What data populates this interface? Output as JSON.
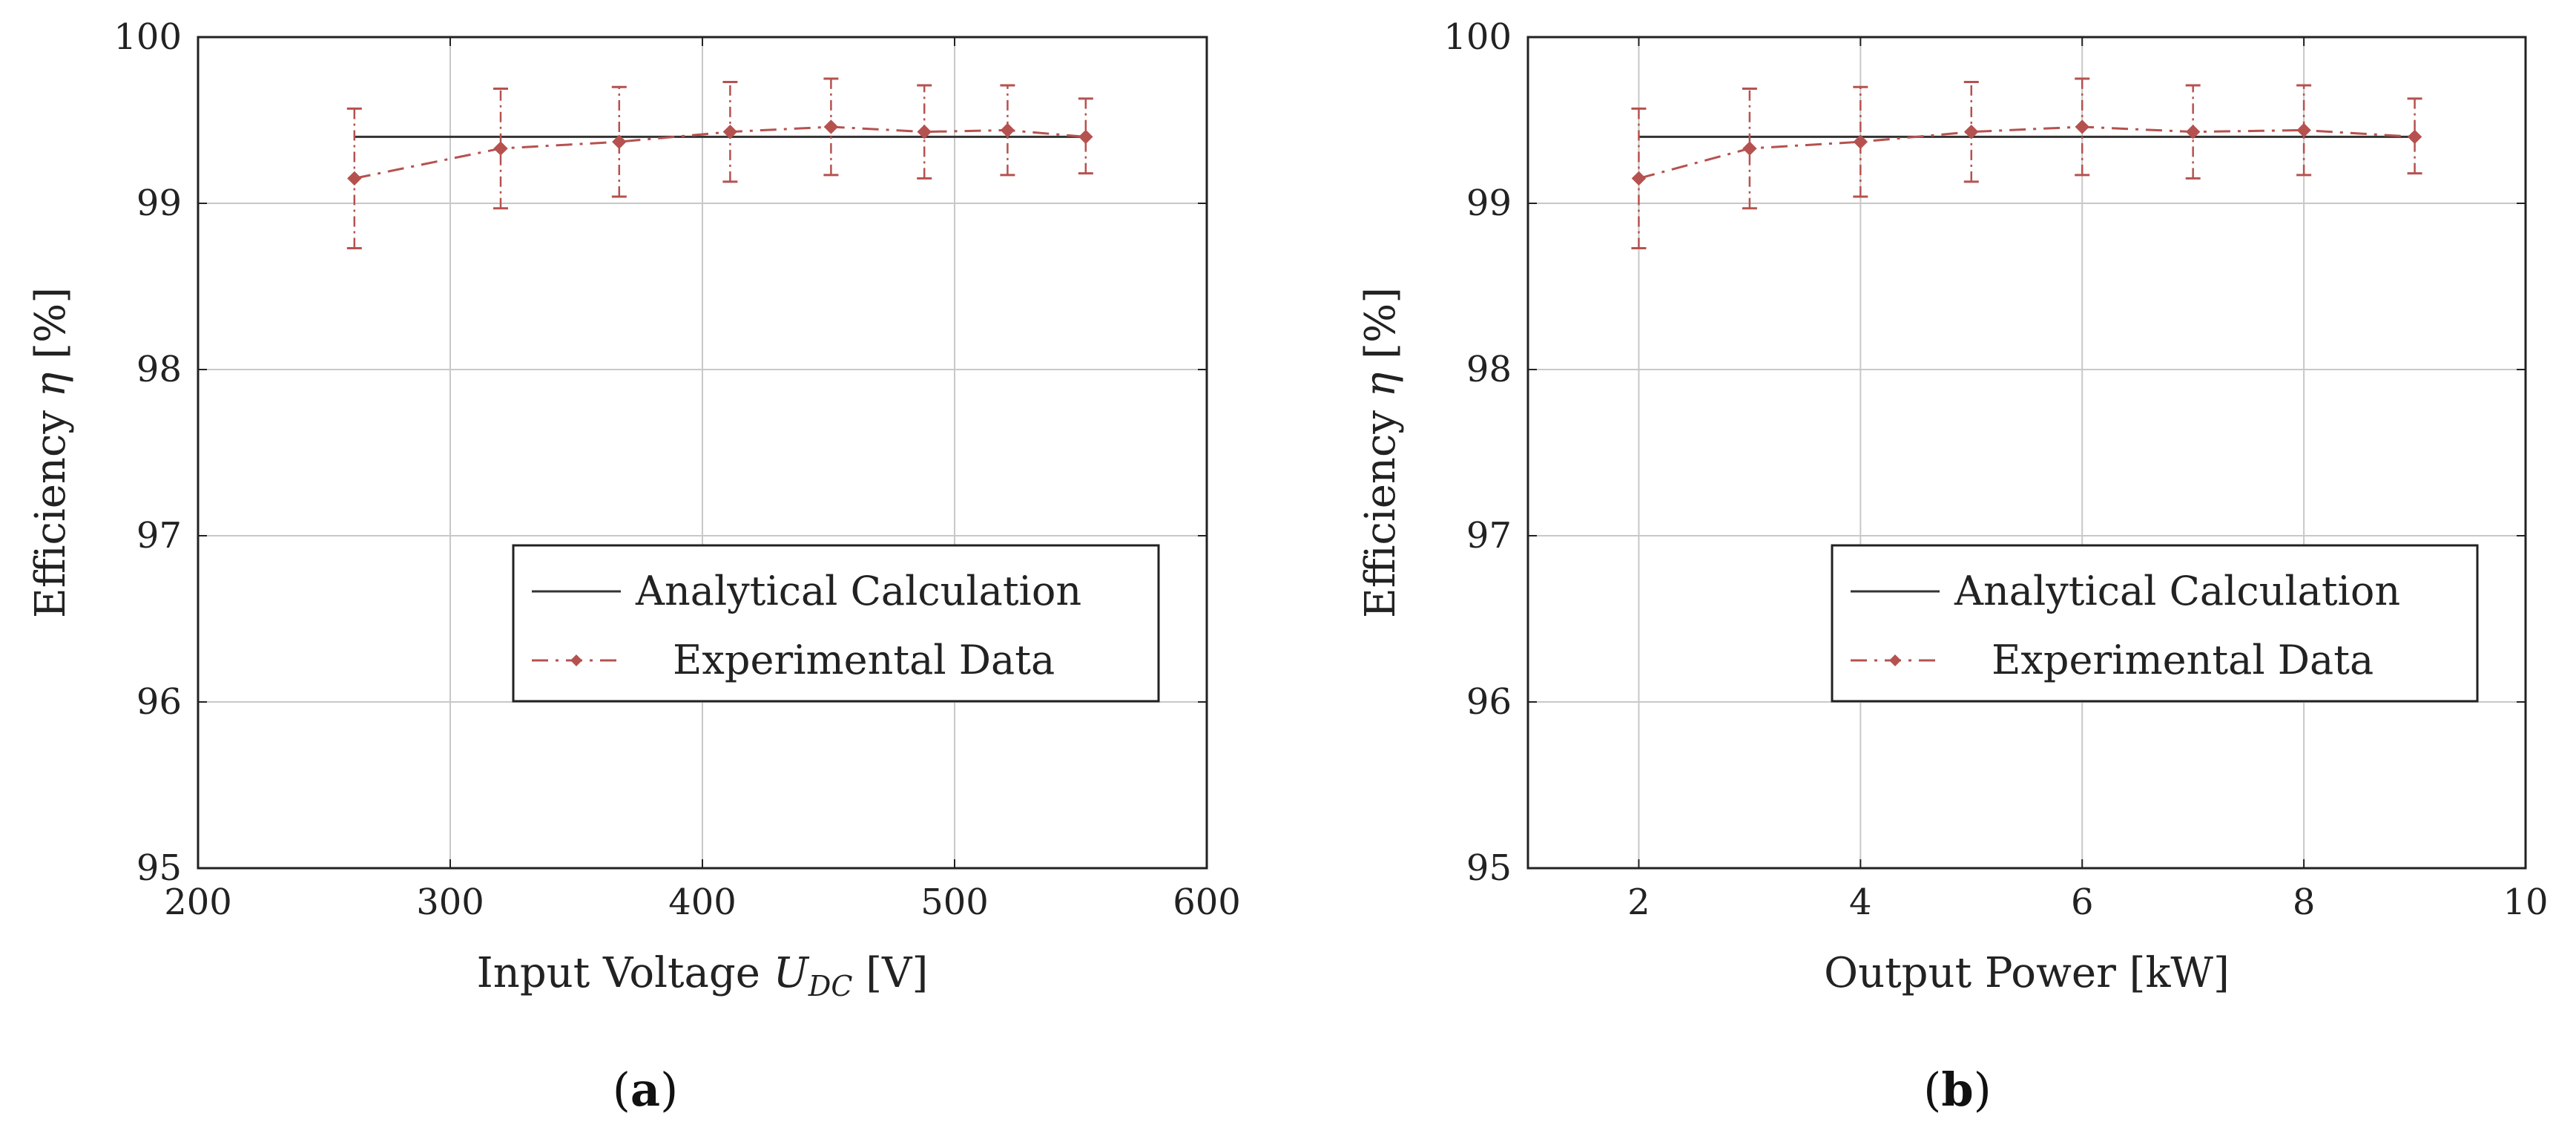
{
  "chart_data": [
    {
      "type": "line",
      "panel_label": "a",
      "xlabel_main": "Input Voltage ",
      "xlabel_symbol": "U",
      "xlabel_subscript": "DC",
      "xlabel_unit": " [V]",
      "ylabel_main": "Efficiency ",
      "ylabel_symbol": "η",
      "ylabel_unit": " [%]",
      "xlim": [
        200,
        600
      ],
      "ylim": [
        95,
        100
      ],
      "xticks": [
        200,
        300,
        400,
        500,
        600
      ],
      "yticks": [
        95,
        96,
        97,
        98,
        99,
        100
      ],
      "grid": true,
      "legend_position": "center-right",
      "series": [
        {
          "name": "Analytical Calculation",
          "style": "solid",
          "color": "#333333",
          "x": [
            262,
            552
          ],
          "y": [
            99.4,
            99.4
          ]
        },
        {
          "name": "Experimental Data",
          "style": "dash-dot",
          "marker": "diamond",
          "color": "#b5524f",
          "x": [
            262,
            320,
            367,
            411,
            451,
            488,
            521,
            552
          ],
          "y": [
            99.15,
            99.33,
            99.37,
            99.43,
            99.46,
            99.43,
            99.44,
            99.4
          ],
          "err_lower": [
            98.73,
            98.97,
            99.04,
            99.13,
            99.17,
            99.15,
            99.17,
            99.18
          ],
          "err_upper": [
            99.57,
            99.69,
            99.7,
            99.73,
            99.75,
            99.71,
            99.71,
            99.63
          ]
        }
      ]
    },
    {
      "type": "line",
      "panel_label": "b",
      "xlabel_main": "Output Power [kW]",
      "xlabel_symbol": "",
      "xlabel_subscript": "",
      "xlabel_unit": "",
      "ylabel_main": "Efficiency ",
      "ylabel_symbol": "η",
      "ylabel_unit": " [%]",
      "xlim": [
        1,
        10
      ],
      "ylim": [
        95,
        100
      ],
      "xticks": [
        2,
        4,
        6,
        8,
        10
      ],
      "yticks": [
        95,
        96,
        97,
        98,
        99,
        100
      ],
      "grid": true,
      "legend_position": "center-right",
      "series": [
        {
          "name": "Analytical Calculation",
          "style": "solid",
          "color": "#333333",
          "x": [
            2,
            9
          ],
          "y": [
            99.4,
            99.4
          ]
        },
        {
          "name": "Experimental Data",
          "style": "dash-dot",
          "marker": "diamond",
          "color": "#b5524f",
          "x": [
            2,
            3,
            4,
            5,
            6,
            7,
            8,
            9
          ],
          "y": [
            99.15,
            99.33,
            99.37,
            99.43,
            99.46,
            99.43,
            99.44,
            99.4
          ],
          "err_lower": [
            98.73,
            98.97,
            99.04,
            99.13,
            99.17,
            99.15,
            99.17,
            99.18
          ],
          "err_upper": [
            99.57,
            99.69,
            99.7,
            99.73,
            99.75,
            99.71,
            99.71,
            99.63
          ]
        }
      ]
    }
  ],
  "captions": [
    {
      "open": "(",
      "label": "a",
      "close": ")"
    },
    {
      "open": "(",
      "label": "b",
      "close": ")"
    }
  ]
}
